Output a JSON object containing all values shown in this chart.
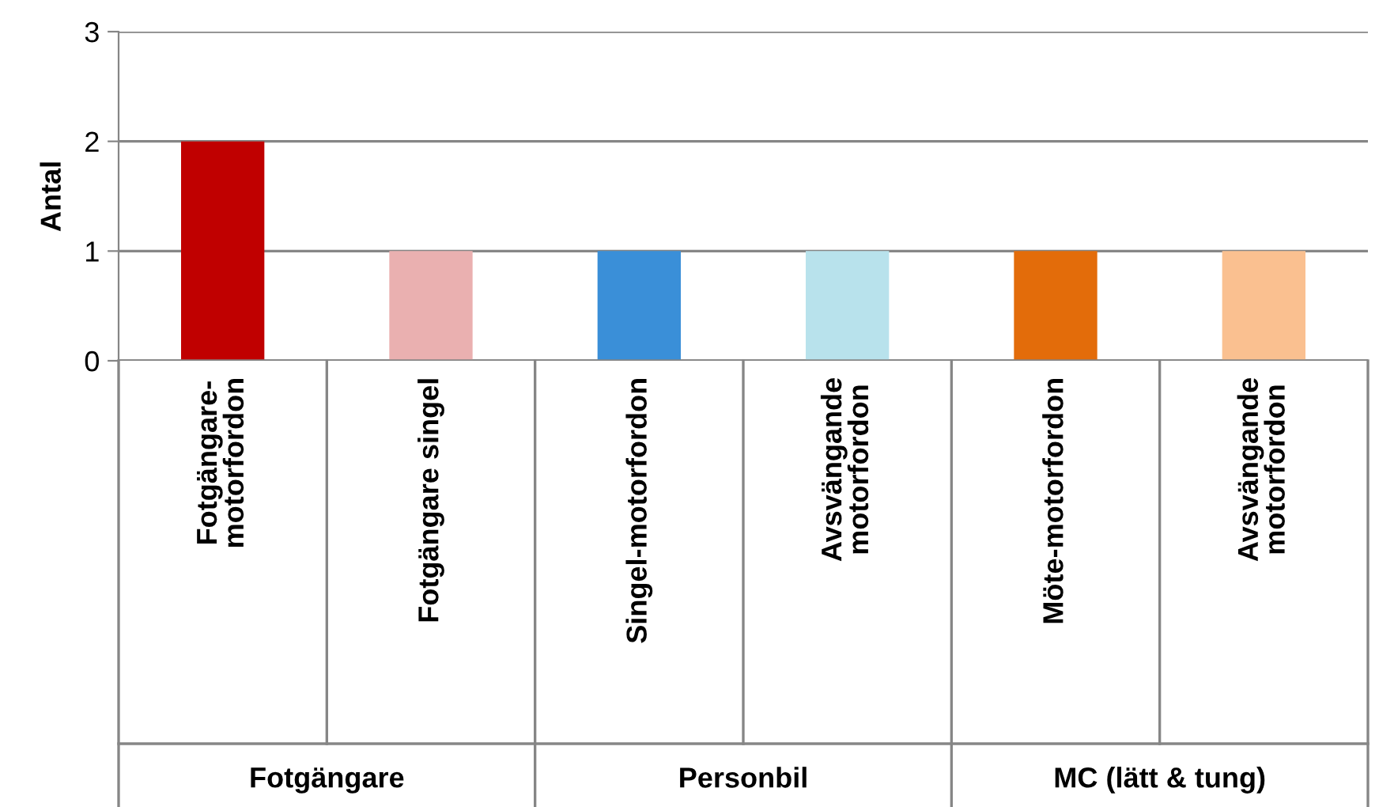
{
  "chart_data": {
    "type": "bar",
    "ylabel": "Antal",
    "categories": [
      "Fotgängare-\nmotorfordon",
      "Fotgängare singel",
      "Singel-motorfordon",
      "Avsvängande\nmotorfordon",
      "Möte-motorfordon",
      "Avsvängande\nmotorfordon"
    ],
    "values": [
      2,
      1,
      1,
      1,
      1,
      1
    ],
    "colors": [
      "#c00000",
      "#eab0b0",
      "#3a8fd8",
      "#b8e2ec",
      "#e36c0a",
      "#fac090"
    ],
    "ylim": [
      0,
      3
    ],
    "yticks": [
      0,
      1,
      2,
      3
    ],
    "grid": "y",
    "annotations": [
      "Fotgängare",
      "Personbil",
      "MC (lätt & tung)"
    ]
  }
}
